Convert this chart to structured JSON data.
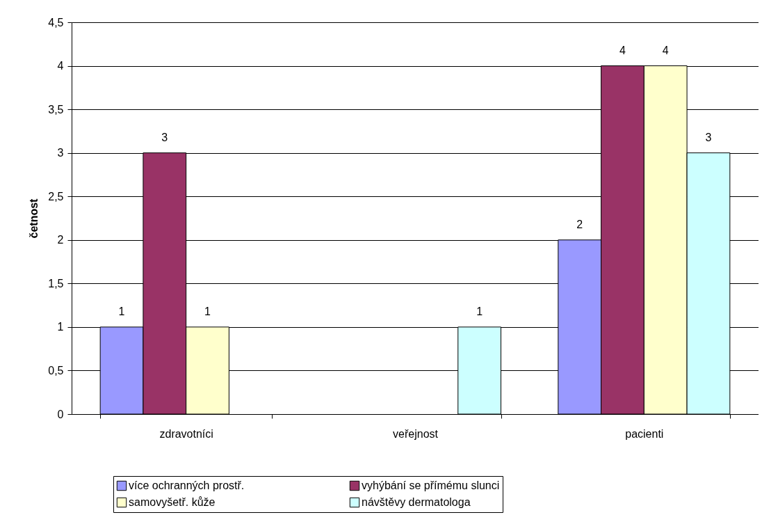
{
  "chart_data": {
    "type": "bar",
    "ylabel": "četnost",
    "categories": [
      "zdravotníci",
      "veřejnost",
      "pacienti"
    ],
    "series": [
      {
        "name": "více ochranných prostř.",
        "color": "#9999ff",
        "values": [
          1,
          null,
          2
        ]
      },
      {
        "name": "vyhýbání se přímému slunci",
        "color": "#993366",
        "values": [
          3,
          null,
          4
        ]
      },
      {
        "name": "samovyšetř. kůže",
        "color": "#ffffcc",
        "values": [
          1,
          null,
          4
        ]
      },
      {
        "name": "návštěvy dermatologa",
        "color": "#ccffff",
        "values": [
          null,
          1,
          3
        ]
      }
    ],
    "ylim": [
      0,
      4.5
    ],
    "yticks": [
      0,
      {
        "value": 0.5,
        "label": "0,5"
      },
      1,
      {
        "value": 1.5,
        "label": "1,5"
      },
      2,
      {
        "value": 2.5,
        "label": "2,5"
      },
      3,
      {
        "value": 3.5,
        "label": "3,5"
      },
      4,
      {
        "value": 4.5,
        "label": "4,5"
      }
    ],
    "grid": "y",
    "legend": "bottom",
    "data_labels": true
  }
}
